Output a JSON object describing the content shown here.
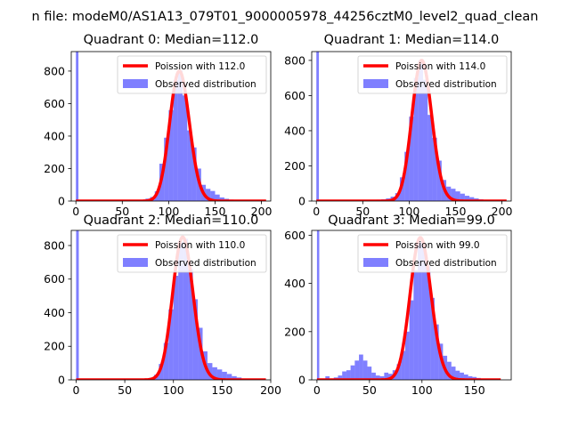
{
  "figure": {
    "suptitle": "n file: modeM0/AS1A13_079T01_9000005978_44256cztM0_level2_quad_clean"
  },
  "chart_data": [
    {
      "type": "histogram",
      "title": "Quadrant 0: Median=112.0",
      "median": 112.0,
      "xlim": [
        -5,
        210
      ],
      "ylim": [
        0,
        920
      ],
      "xticks": [
        0,
        50,
        100,
        150,
        200
      ],
      "yticks": [
        0,
        200,
        400,
        600,
        800
      ],
      "legend_position": "upper right",
      "legend": [
        "Poission with 112.0",
        "Observed distribution"
      ],
      "poisson_lambda": 112.0,
      "poisson_peak": 800,
      "poisson_range": [
        0,
        205
      ],
      "zero_bin_count": 920,
      "bin_width": 5,
      "bins": [
        [
          50,
          3
        ],
        [
          55,
          4
        ],
        [
          60,
          5
        ],
        [
          65,
          8
        ],
        [
          70,
          8
        ],
        [
          75,
          15
        ],
        [
          80,
          25
        ],
        [
          85,
          60
        ],
        [
          90,
          230
        ],
        [
          95,
          390
        ],
        [
          100,
          560
        ],
        [
          105,
          745
        ],
        [
          110,
          805
        ],
        [
          115,
          650
        ],
        [
          120,
          435
        ],
        [
          125,
          330
        ],
        [
          130,
          200
        ],
        [
          135,
          100
        ],
        [
          140,
          75
        ],
        [
          145,
          62
        ],
        [
          150,
          40
        ],
        [
          155,
          22
        ],
        [
          160,
          14
        ],
        [
          165,
          9
        ],
        [
          170,
          6
        ],
        [
          175,
          4
        ],
        [
          180,
          3
        ],
        [
          185,
          2
        ]
      ]
    },
    {
      "type": "histogram",
      "title": "Quadrant 1: Median=114.0",
      "median": 114.0,
      "xlim": [
        -5,
        210
      ],
      "ylim": [
        0,
        850
      ],
      "xticks": [
        0,
        50,
        100,
        150,
        200
      ],
      "yticks": [
        0,
        200,
        400,
        600,
        800
      ],
      "legend_position": "upper right",
      "legend": [
        "Poission with 114.0",
        "Observed distribution"
      ],
      "poisson_lambda": 114.0,
      "poisson_peak": 800,
      "poisson_range": [
        0,
        205
      ],
      "zero_bin_count": 850,
      "bin_width": 5,
      "bins": [
        [
          55,
          3
        ],
        [
          60,
          5
        ],
        [
          65,
          8
        ],
        [
          70,
          10
        ],
        [
          75,
          15
        ],
        [
          80,
          25
        ],
        [
          85,
          45
        ],
        [
          90,
          135
        ],
        [
          95,
          280
        ],
        [
          100,
          480
        ],
        [
          105,
          700
        ],
        [
          110,
          800
        ],
        [
          115,
          690
        ],
        [
          120,
          490
        ],
        [
          125,
          360
        ],
        [
          130,
          230
        ],
        [
          135,
          120
        ],
        [
          140,
          82
        ],
        [
          145,
          70
        ],
        [
          150,
          55
        ],
        [
          155,
          42
        ],
        [
          160,
          30
        ],
        [
          165,
          22
        ],
        [
          170,
          15
        ],
        [
          175,
          10
        ],
        [
          180,
          6
        ],
        [
          185,
          3
        ]
      ]
    },
    {
      "type": "histogram",
      "title": "Quadrant 2: Median=110.0",
      "median": 110.0,
      "xlim": [
        -5,
        200
      ],
      "ylim": [
        0,
        890
      ],
      "xticks": [
        0,
        50,
        100,
        150,
        200
      ],
      "yticks": [
        0,
        200,
        400,
        600,
        800
      ],
      "legend_position": "upper right",
      "legend": [
        "Poission with 110.0",
        "Observed distribution"
      ],
      "poisson_lambda": 110.0,
      "poisson_peak": 850,
      "poisson_range": [
        0,
        195
      ],
      "zero_bin_count": 890,
      "bin_width": 5,
      "bins": [
        [
          60,
          3
        ],
        [
          65,
          5
        ],
        [
          70,
          8
        ],
        [
          75,
          12
        ],
        [
          80,
          30
        ],
        [
          85,
          95
        ],
        [
          90,
          220
        ],
        [
          95,
          420
        ],
        [
          100,
          620
        ],
        [
          105,
          820
        ],
        [
          110,
          840
        ],
        [
          115,
          660
        ],
        [
          120,
          480
        ],
        [
          125,
          310
        ],
        [
          130,
          170
        ],
        [
          135,
          100
        ],
        [
          140,
          75
        ],
        [
          145,
          62
        ],
        [
          150,
          48
        ],
        [
          155,
          35
        ],
        [
          160,
          22
        ],
        [
          165,
          14
        ],
        [
          170,
          8
        ],
        [
          175,
          5
        ],
        [
          180,
          3
        ]
      ]
    },
    {
      "type": "histogram",
      "title": "Quadrant 3: Median=99.0",
      "median": 99.0,
      "xlim": [
        -5,
        185
      ],
      "ylim": [
        0,
        620
      ],
      "xticks": [
        0,
        50,
        100,
        150
      ],
      "yticks": [
        0,
        200,
        400,
        600
      ],
      "legend_position": "upper right",
      "legend": [
        "Poission with 99.0",
        "Observed distribution"
      ],
      "poisson_lambda": 99.0,
      "poisson_peak": 590,
      "poisson_range": [
        0,
        175
      ],
      "zero_bin_count": 620,
      "bin_width": 4,
      "bins": [
        [
          8,
          15
        ],
        [
          16,
          10
        ],
        [
          20,
          18
        ],
        [
          24,
          35
        ],
        [
          28,
          40
        ],
        [
          32,
          60
        ],
        [
          36,
          80
        ],
        [
          40,
          105
        ],
        [
          44,
          80
        ],
        [
          48,
          55
        ],
        [
          52,
          30
        ],
        [
          56,
          18
        ],
        [
          60,
          15
        ],
        [
          64,
          30
        ],
        [
          68,
          25
        ],
        [
          72,
          40
        ],
        [
          76,
          65
        ],
        [
          80,
          120
        ],
        [
          84,
          200
        ],
        [
          88,
          330
        ],
        [
          92,
          455
        ],
        [
          96,
          570
        ],
        [
          100,
          560
        ],
        [
          104,
          470
        ],
        [
          108,
          340
        ],
        [
          112,
          230
        ],
        [
          116,
          150
        ],
        [
          120,
          100
        ],
        [
          124,
          75
        ],
        [
          128,
          55
        ],
        [
          132,
          38
        ],
        [
          136,
          30
        ],
        [
          140,
          22
        ],
        [
          144,
          15
        ],
        [
          148,
          12
        ],
        [
          152,
          8
        ],
        [
          156,
          5
        ],
        [
          160,
          3
        ]
      ]
    }
  ]
}
